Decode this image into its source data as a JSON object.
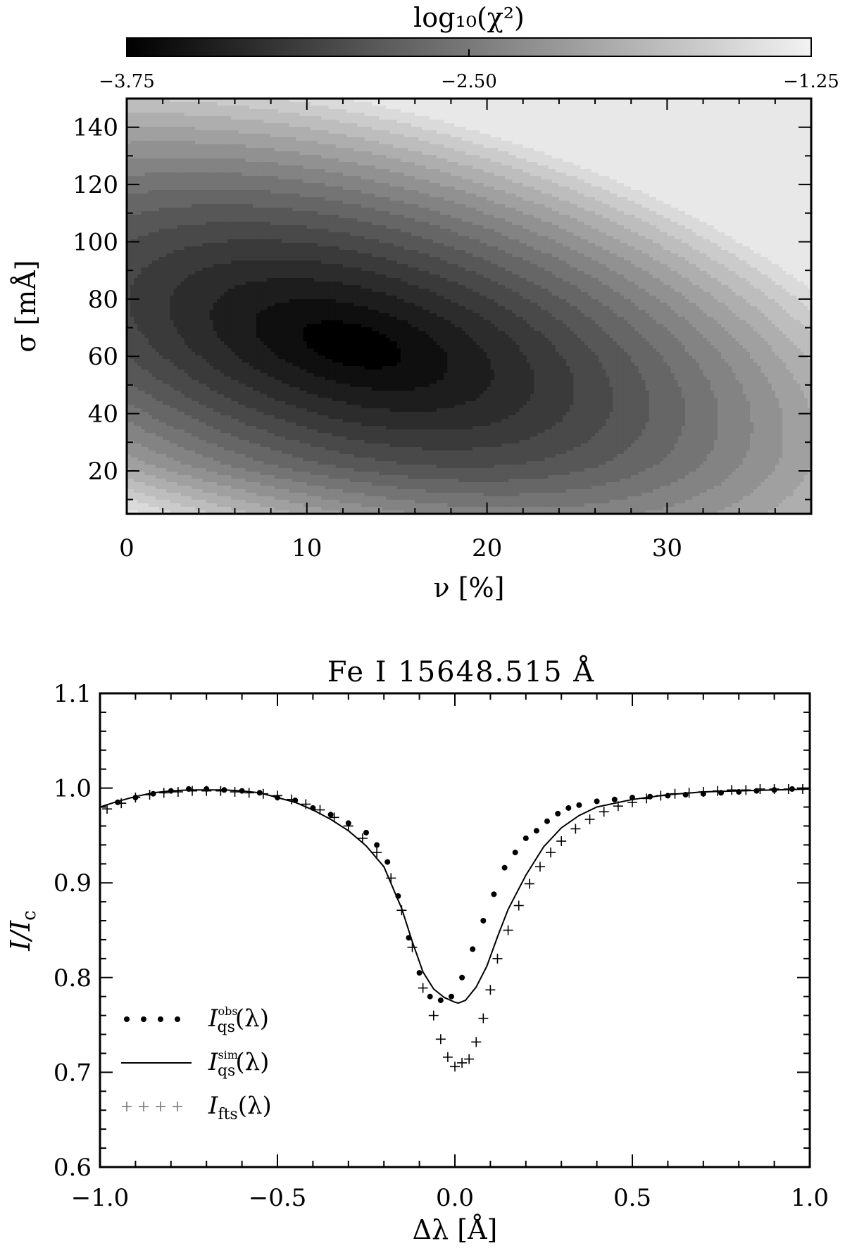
{
  "colorbar": {
    "label": "log₁₀(χ²)",
    "range": [
      -3.75,
      -1.25
    ],
    "tick_labels": [
      "−3.75",
      "−2.50",
      "−1.25"
    ],
    "ticks": [
      -3.75,
      -2.5,
      -1.25
    ],
    "cmap": [
      "#000000",
      "#f2f2f2"
    ]
  },
  "chart_data": [
    {
      "type": "heatmap",
      "xlabel": "ν [%]",
      "ylabel": "σ [mÅ]",
      "xlim": [
        0,
        38
      ],
      "ylim": [
        5,
        150
      ],
      "x_ticks": [
        0,
        10,
        20,
        30
      ],
      "x_tick_labels": [
        "0",
        "10",
        "20",
        "30"
      ],
      "y_ticks": [
        20,
        40,
        60,
        80,
        100,
        120,
        140
      ],
      "y_tick_labels": [
        "20",
        "40",
        "60",
        "80",
        "100",
        "120",
        "140"
      ],
      "minimum": {
        "x": 12.5,
        "y": 64,
        "value": -3.75
      },
      "levels": [
        -3.75,
        -3.6,
        -3.45,
        -3.3,
        -3.15,
        -3.0,
        -2.85,
        -2.7,
        -2.55,
        -2.4,
        -2.25,
        -2.1,
        -1.95,
        -1.8,
        -1.65,
        -1.5,
        -1.35
      ],
      "value_range": [
        -3.75,
        -1.25
      ]
    },
    {
      "type": "line",
      "title": "Fe I 15648.515 Å",
      "xlabel": "Δλ [Å]",
      "ylabel": "I/I",
      "ylabel_sub": "c",
      "xlim": [
        -1.0,
        1.0
      ],
      "ylim": [
        0.6,
        1.1
      ],
      "x_ticks": [
        -1.0,
        -0.5,
        0.0,
        0.5,
        1.0
      ],
      "x_tick_labels": [
        "−1.0",
        "−0.5",
        "0.0",
        "0.5",
        "1.0"
      ],
      "y_ticks": [
        0.6,
        0.7,
        0.8,
        0.9,
        1.0,
        1.1
      ],
      "y_tick_labels": [
        "0.6",
        "0.7",
        "0.8",
        "0.9",
        "1.0",
        "1.1"
      ],
      "legend_position": "lower-left",
      "series": [
        {
          "name": "obs",
          "legend_main": "I",
          "legend_sub": "qs",
          "legend_sup": "obs",
          "legend_tail": "(λ)",
          "marker": "dot",
          "x": [
            -0.95,
            -0.9,
            -0.85,
            -0.8,
            -0.75,
            -0.7,
            -0.65,
            -0.6,
            -0.55,
            -0.5,
            -0.45,
            -0.4,
            -0.35,
            -0.3,
            -0.25,
            -0.22,
            -0.19,
            -0.16,
            -0.13,
            -0.1,
            -0.07,
            -0.04,
            -0.01,
            0.02,
            0.05,
            0.08,
            0.11,
            0.14,
            0.17,
            0.2,
            0.23,
            0.26,
            0.29,
            0.32,
            0.35,
            0.4,
            0.45,
            0.5,
            0.55,
            0.6,
            0.65,
            0.7,
            0.75,
            0.8,
            0.85,
            0.9,
            0.95
          ],
          "y": [
            0.985,
            0.99,
            0.994,
            0.997,
            0.999,
            0.999,
            0.998,
            0.997,
            0.995,
            0.99,
            0.987,
            0.979,
            0.972,
            0.963,
            0.953,
            0.94,
            0.922,
            0.886,
            0.842,
            0.805,
            0.78,
            0.776,
            0.78,
            0.8,
            0.83,
            0.86,
            0.888,
            0.916,
            0.932,
            0.947,
            0.955,
            0.965,
            0.973,
            0.979,
            0.982,
            0.986,
            0.988,
            0.99,
            0.991,
            0.992,
            0.993,
            0.994,
            0.995,
            0.996,
            0.997,
            0.998,
            0.999
          ]
        },
        {
          "name": "sim",
          "legend_main": "I",
          "legend_sub": "qs",
          "legend_sup": "sim",
          "legend_tail": "(λ)",
          "marker": "line",
          "x": [
            -1.0,
            -0.95,
            -0.9,
            -0.85,
            -0.8,
            -0.75,
            -0.7,
            -0.65,
            -0.6,
            -0.55,
            -0.5,
            -0.45,
            -0.4,
            -0.35,
            -0.3,
            -0.25,
            -0.2,
            -0.15,
            -0.12,
            -0.09,
            -0.06,
            -0.03,
            0.0,
            0.01,
            0.03,
            0.06,
            0.09,
            0.12,
            0.15,
            0.2,
            0.25,
            0.3,
            0.35,
            0.4,
            0.5,
            0.6,
            0.7,
            0.8,
            0.9,
            1.0
          ],
          "y": [
            0.98,
            0.986,
            0.991,
            0.995,
            0.997,
            0.998,
            0.998,
            0.998,
            0.997,
            0.995,
            0.99,
            0.985,
            0.977,
            0.967,
            0.955,
            0.939,
            0.917,
            0.873,
            0.838,
            0.806,
            0.788,
            0.779,
            0.774,
            0.773,
            0.776,
            0.79,
            0.812,
            0.843,
            0.872,
            0.908,
            0.938,
            0.958,
            0.971,
            0.98,
            0.988,
            0.993,
            0.996,
            0.997,
            0.998,
            0.999
          ]
        },
        {
          "name": "fts",
          "legend_main": "I",
          "legend_sub": "fts",
          "legend_sup": "",
          "legend_tail": "(λ)",
          "marker": "plus",
          "x": [
            -0.98,
            -0.94,
            -0.9,
            -0.86,
            -0.82,
            -0.78,
            -0.74,
            -0.7,
            -0.66,
            -0.62,
            -0.58,
            -0.54,
            -0.5,
            -0.46,
            -0.42,
            -0.38,
            -0.34,
            -0.3,
            -0.26,
            -0.22,
            -0.18,
            -0.15,
            -0.12,
            -0.09,
            -0.06,
            -0.04,
            -0.02,
            0.0,
            0.02,
            0.04,
            0.06,
            0.08,
            0.1,
            0.12,
            0.15,
            0.18,
            0.21,
            0.24,
            0.27,
            0.3,
            0.34,
            0.38,
            0.42,
            0.46,
            0.5,
            0.54,
            0.58,
            0.62,
            0.66,
            0.7,
            0.74,
            0.78,
            0.82,
            0.86,
            0.9,
            0.94,
            0.98
          ],
          "y": [
            0.978,
            0.984,
            0.99,
            0.993,
            0.995,
            0.996,
            0.997,
            0.997,
            0.997,
            0.996,
            0.995,
            0.994,
            0.992,
            0.988,
            0.983,
            0.977,
            0.969,
            0.96,
            0.947,
            0.932,
            0.905,
            0.871,
            0.832,
            0.789,
            0.76,
            0.735,
            0.716,
            0.706,
            0.71,
            0.714,
            0.732,
            0.757,
            0.787,
            0.82,
            0.85,
            0.876,
            0.899,
            0.917,
            0.932,
            0.944,
            0.957,
            0.967,
            0.975,
            0.981,
            0.985,
            0.989,
            0.992,
            0.994,
            0.995,
            0.996,
            0.997,
            0.998,
            0.998,
            0.999,
            0.999,
            0.999,
            0.999
          ]
        }
      ]
    }
  ]
}
